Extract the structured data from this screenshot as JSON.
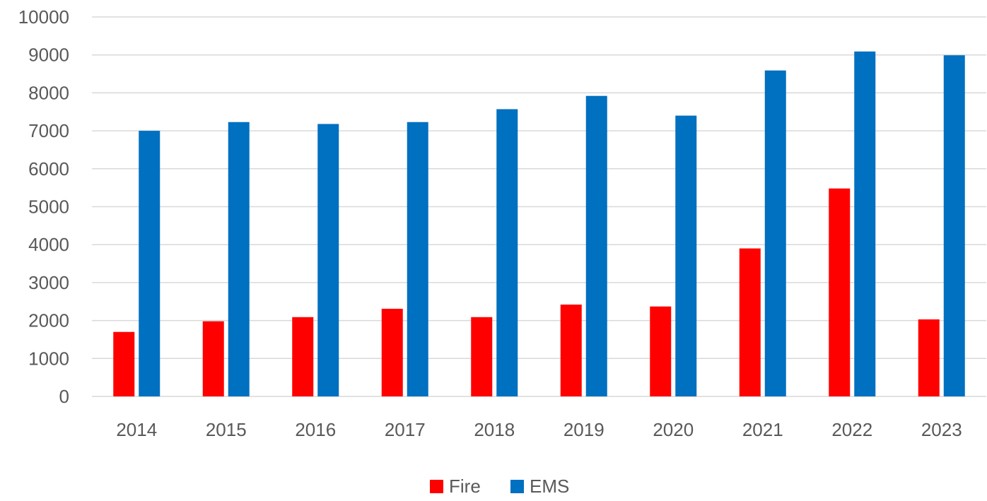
{
  "chart_data": {
    "type": "bar",
    "title": "",
    "xlabel": "",
    "ylabel": "",
    "categories": [
      "2014",
      "2015",
      "2016",
      "2017",
      "2018",
      "2019",
      "2020",
      "2021",
      "2022",
      "2023"
    ],
    "series": [
      {
        "name": "Fire",
        "color": "#ff0000",
        "values": [
          1700,
          1980,
          2090,
          2310,
          2090,
          2420,
          2370,
          3900,
          5480,
          2030
        ]
      },
      {
        "name": "EMS",
        "color": "#0070c0",
        "values": [
          7000,
          7230,
          7180,
          7230,
          7570,
          7920,
          7400,
          8590,
          9090,
          8990
        ]
      }
    ],
    "ylim": [
      0,
      10000
    ],
    "yticks": [
      0,
      1000,
      2000,
      3000,
      4000,
      5000,
      6000,
      7000,
      8000,
      9000,
      10000
    ],
    "grid": true,
    "legend_position": "bottom"
  }
}
